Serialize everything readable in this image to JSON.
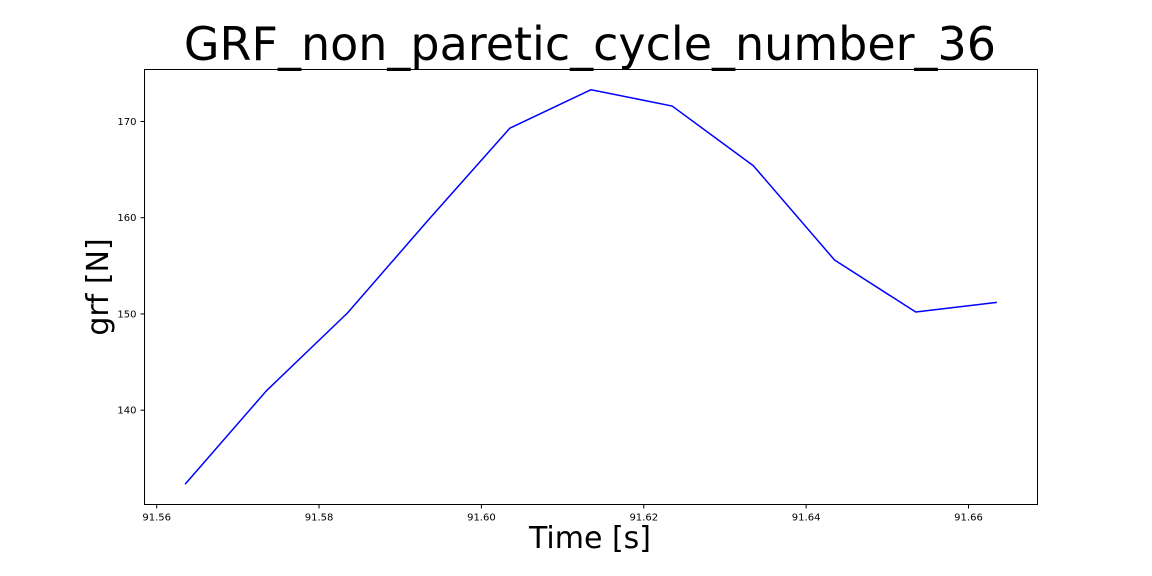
{
  "chart_data": {
    "type": "line",
    "title": "GRF_non_paretic_cycle_number_36",
    "xlabel": "Time [s]",
    "ylabel": "grf [N]",
    "xlim": [
      91.5585,
      91.6685
    ],
    "ylim": [
      130.2,
      175.4
    ],
    "xticks": [
      91.56,
      91.58,
      91.6,
      91.62,
      91.64,
      91.66
    ],
    "xtick_labels": [
      "91.56",
      "91.58",
      "91.60",
      "91.62",
      "91.64",
      "91.66"
    ],
    "yticks": [
      140,
      150,
      160,
      170
    ],
    "ytick_labels": [
      "140",
      "150",
      "160",
      "170"
    ],
    "grid": false,
    "series": [
      {
        "color": "#0000ff",
        "x": [
          91.5635,
          91.5735,
          91.5835,
          91.5935,
          91.6035,
          91.6135,
          91.6235,
          91.6335,
          91.6435,
          91.6535,
          91.6635
        ],
        "y": [
          132.3,
          142.0,
          150.1,
          159.8,
          169.3,
          173.3,
          171.6,
          165.4,
          155.6,
          150.2,
          151.2
        ]
      }
    ]
  }
}
